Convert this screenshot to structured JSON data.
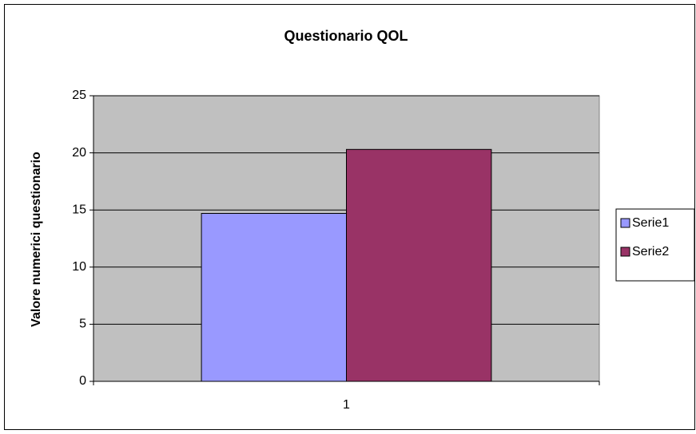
{
  "chart_data": {
    "type": "bar",
    "title": "Questionario QOL",
    "y_label": "Valore numerici questionario",
    "categories": [
      "1"
    ],
    "series": [
      {
        "name": "Serie1",
        "color": "#9999ff",
        "values": [
          14.7
        ]
      },
      {
        "name": "Serie2",
        "color": "#993366",
        "values": [
          20.3
        ]
      }
    ],
    "ylim": [
      0,
      25
    ],
    "yticks": [
      0,
      5,
      10,
      15,
      20,
      25
    ],
    "grid": true,
    "legend": "right",
    "plot_background": "#c0c0c0"
  }
}
